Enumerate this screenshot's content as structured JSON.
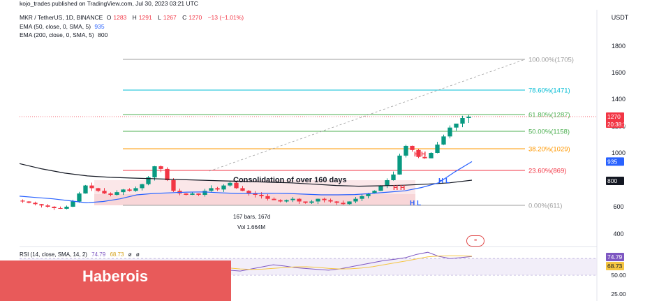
{
  "header": {
    "published": "kojo_trades published on TradingView.com, Jul 30, 2023 03:21 UTC",
    "symbol": "MKR / TetherUS, 1D, BINANCE",
    "o_label": "O",
    "o": "1283",
    "h_label": "H",
    "h": "1291",
    "l_label": "L",
    "l": "1267",
    "c_label": "C",
    "c": "1270",
    "change": "−13 (−1.01%)",
    "ema50_label": "EMA (50, close, 0, SMA, 5)",
    "ema50_value": "935",
    "ema200_label": "EMA (200, close, 0, SMA, 5)",
    "ema200_value": "800"
  },
  "price_axis": {
    "currency": "USDT",
    "ticks": [
      "1800",
      "1600",
      "1400",
      "1200",
      "1000",
      "600",
      "400"
    ],
    "last_price": "1270",
    "countdown": "20:38:12",
    "ema50_badge": "935",
    "ema200_badge": "800"
  },
  "rsi_axis": {
    "badge_rsi": "74.79",
    "badge_sma": "68.73",
    "ticks": [
      "50.00",
      "25.00"
    ]
  },
  "annotations": {
    "consolidation": "Consolidation of over 160 days",
    "hh_left": "H H",
    "hh_right": "H H",
    "hl_upper": "H L",
    "hl_lower": "H L",
    "bars": "167 bars, 167d",
    "vol": "Vol 1.664M"
  },
  "rsi": {
    "label": "RSI (14, close, SMA, 14, 2)",
    "value1": "74.79",
    "value2": "68.73",
    "sym1": "ø",
    "sym2": "ø"
  },
  "banner": {
    "text": "Haberois"
  },
  "colors": {
    "up": "#089981",
    "down": "#f23645",
    "ema50": "#2962ff",
    "ema200": "#131722",
    "rsi": "#7e57c2",
    "rsi_sma": "#f5c542",
    "banner": "#e85a5a"
  },
  "chart_data": {
    "type": "candlestick",
    "symbol": "MKR / TetherUS",
    "interval": "1D",
    "price_axis_ticks": [
      400,
      600,
      1000,
      1200,
      1400,
      1600,
      1800
    ],
    "ohlc_last": {
      "open": 1283,
      "high": 1291,
      "low": 1267,
      "close": 1270,
      "change": -13,
      "change_pct": -1.01
    },
    "fib_levels": [
      {
        "label": "100.00%(1705)",
        "ratio": 1.0,
        "price": 1705,
        "color": "#9e9e9e"
      },
      {
        "label": "78.60%(1471)",
        "ratio": 0.786,
        "price": 1471,
        "color": "#00bcd4"
      },
      {
        "label": "61.80%(1287)",
        "ratio": 0.618,
        "price": 1287,
        "color": "#4caf50"
      },
      {
        "label": "50.00%(1158)",
        "ratio": 0.5,
        "price": 1158,
        "color": "#4caf50"
      },
      {
        "label": "38.20%(1029)",
        "ratio": 0.382,
        "price": 1029,
        "color": "#ff9800"
      },
      {
        "label": "23.60%(869)",
        "ratio": 0.236,
        "price": 869,
        "color": "#f23645"
      },
      {
        "label": "0.00%(611)",
        "ratio": 0.0,
        "price": 611,
        "color": "#9e9e9e"
      }
    ],
    "close_series_approx": [
      640,
      630,
      620,
      610,
      600,
      590,
      585,
      600,
      640,
      700,
      760,
      740,
      720,
      700,
      690,
      710,
      730,
      720,
      740,
      770,
      820,
      900,
      880,
      800,
      720,
      700,
      690,
      700,
      690,
      720,
      740,
      730,
      760,
      780,
      740,
      720,
      700,
      690,
      680,
      660,
      650,
      640,
      650,
      660,
      640,
      630,
      640,
      660,
      650,
      640,
      630,
      620,
      640,
      660,
      680,
      700,
      720,
      760,
      800,
      840,
      980,
      1050,
      1020,
      970,
      960,
      1000,
      1060,
      1120,
      1190,
      1220,
      1260,
      1270
    ],
    "ema50_approx": [
      680,
      670,
      660,
      645,
      630,
      640,
      660,
      690,
      700,
      705,
      710,
      712,
      705,
      700,
      700,
      702,
      700,
      695,
      690,
      690,
      692,
      700,
      710,
      720,
      745,
      780,
      860,
      935
    ],
    "ema200_approx": [
      920,
      880,
      850,
      830,
      820,
      815,
      810,
      805,
      800,
      795,
      790,
      785,
      780,
      770,
      760,
      755,
      758,
      762,
      770,
      780,
      800
    ],
    "rsi_approx": [
      45,
      30,
      28,
      35,
      55,
      60,
      52,
      48,
      50,
      55,
      60,
      62,
      58,
      55,
      54,
      52,
      50,
      48,
      45,
      42,
      40,
      45,
      50,
      55,
      52,
      48,
      46,
      44,
      42,
      45,
      50,
      55,
      60,
      65,
      68,
      72,
      80,
      85,
      75,
      70,
      72,
      74.79
    ],
    "rsi_current": 74.79,
    "rsi_sma_current": 68.73,
    "volume_selection": "1.664M",
    "selection_bars": 167,
    "selection_days": "167d"
  }
}
